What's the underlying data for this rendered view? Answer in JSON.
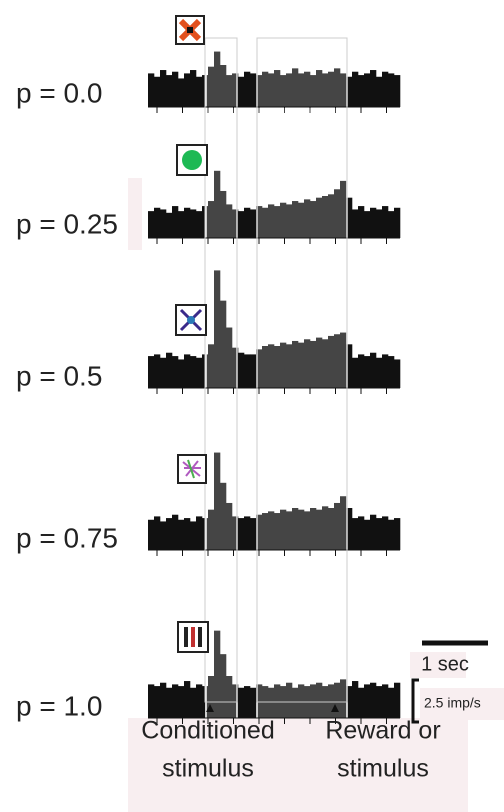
{
  "chart_data": [
    {
      "type": "bar",
      "title": "p = 0.0",
      "color": "#111111",
      "values": [
        2.0,
        1.8,
        2.2,
        1.9,
        2.1,
        1.7,
        2.0,
        2.2,
        1.8,
        1.9,
        2.4,
        3.3,
        2.5,
        1.9,
        2.0,
        1.8,
        2.1,
        2.0,
        1.9,
        2.1,
        2.0,
        2.2,
        1.9,
        2.0,
        2.3,
        2.0,
        2.1,
        1.9,
        2.2,
        2.0,
        2.1,
        2.3,
        2.0,
        1.8,
        2.1,
        1.9,
        2.0,
        2.2,
        1.8,
        2.1,
        2.0,
        1.9
      ]
    },
    {
      "type": "bar",
      "title": "p = 0.25",
      "color": "#111111",
      "values": [
        1.6,
        1.8,
        1.7,
        1.5,
        1.9,
        1.6,
        1.8,
        1.7,
        1.6,
        1.9,
        2.2,
        4.0,
        2.8,
        2.0,
        1.7,
        1.6,
        1.8,
        1.7,
        1.9,
        1.8,
        2.0,
        1.9,
        2.1,
        2.0,
        2.2,
        2.1,
        2.3,
        2.2,
        2.4,
        2.5,
        2.6,
        2.9,
        3.4,
        2.4,
        1.7,
        1.9,
        1.6,
        1.8,
        1.7,
        1.9,
        1.6,
        1.8
      ]
    },
    {
      "type": "bar",
      "title": "p = 0.5",
      "color": "#111111",
      "values": [
        1.9,
        2.0,
        1.8,
        2.1,
        1.9,
        1.7,
        2.0,
        1.9,
        1.8,
        2.0,
        2.6,
        7.0,
        5.2,
        3.6,
        2.4,
        2.1,
        2.0,
        2.0,
        2.3,
        2.5,
        2.6,
        2.5,
        2.7,
        2.6,
        2.8,
        2.7,
        2.9,
        2.8,
        3.0,
        2.9,
        3.1,
        3.2,
        3.3,
        2.6,
        1.8,
        2.0,
        1.9,
        2.1,
        1.8,
        2.0,
        1.9,
        1.7
      ]
    },
    {
      "type": "bar",
      "title": "p = 0.75",
      "color": "#111111",
      "values": [
        1.8,
        2.0,
        1.7,
        1.9,
        2.1,
        1.8,
        1.9,
        1.7,
        2.0,
        1.9,
        2.4,
        5.8,
        4.0,
        2.8,
        2.0,
        1.9,
        2.0,
        1.9,
        2.1,
        2.2,
        2.3,
        2.2,
        2.4,
        2.3,
        2.5,
        2.4,
        2.3,
        2.5,
        2.4,
        2.6,
        2.5,
        2.8,
        3.2,
        2.5,
        1.9,
        2.0,
        1.8,
        2.1,
        1.9,
        2.0,
        1.8,
        1.9
      ]
    },
    {
      "type": "bar",
      "title": "p = 1.0",
      "color": "#111111",
      "values": [
        2.0,
        1.9,
        2.1,
        1.8,
        2.0,
        1.9,
        2.2,
        1.8,
        2.0,
        1.9,
        2.5,
        5.2,
        3.8,
        2.5,
        2.0,
        1.8,
        1.9,
        1.8,
        2.0,
        1.9,
        1.8,
        2.0,
        1.9,
        2.1,
        1.8,
        2.0,
        1.9,
        2.0,
        2.1,
        1.9,
        2.0,
        2.1,
        2.3,
        1.9,
        2.2,
        1.8,
        2.0,
        2.1,
        1.9,
        2.0,
        1.8,
        2.1
      ]
    }
  ],
  "scale_bar_x": {
    "value": 1,
    "label": "1 sec"
  },
  "scale_bar_y": {
    "value": 2.5,
    "label": "2.5 imp/s"
  },
  "x_labels": {
    "stimulus_line1": "Conditioned",
    "stimulus_line2": "stimulus",
    "reward_line1": "Reward or",
    "reward_line2": "stimulus"
  }
}
